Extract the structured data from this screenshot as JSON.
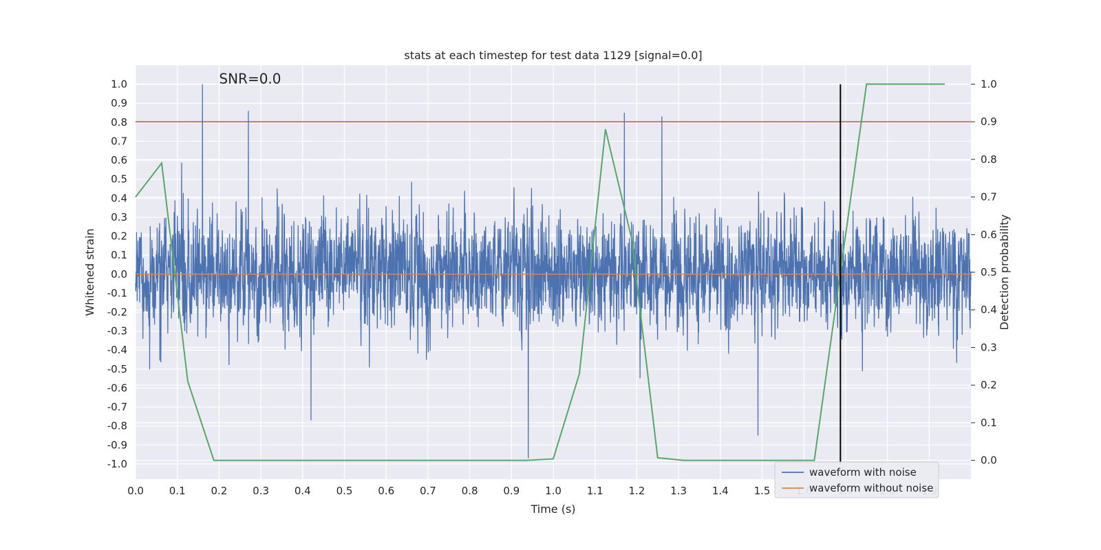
{
  "chart_data": {
    "type": "line",
    "title": "stats at each timestep for test data 1129 [signal=0.0]",
    "annotation": "SNR=0.0",
    "xlabel": "Time (s)",
    "ylabel": "Whitened strain",
    "y2label": "Detection probability",
    "xlim": [
      0.0,
      2.0
    ],
    "ylim": [
      -1.08,
      1.1
    ],
    "y2lim": [
      -0.05,
      1.05
    ],
    "xticks": [
      "0.0",
      "0.1",
      "0.2",
      "0.3",
      "0.4",
      "0.5",
      "0.6",
      "0.7",
      "0.8",
      "0.9",
      "1.0",
      "1.1",
      "1.2",
      "1.3",
      "1.4",
      "1.5",
      "1.6",
      "1.7",
      "1.8",
      "1.9"
    ],
    "yticks": [
      "1.0",
      "0.9",
      "0.8",
      "0.7",
      "0.6",
      "0.5",
      "0.4",
      "0.3",
      "0.2",
      "0.1",
      "0.0",
      "-0.1",
      "-0.2",
      "-0.3",
      "-0.4",
      "-0.5",
      "-0.6",
      "-0.7",
      "-0.8",
      "-0.9",
      "-1.0"
    ],
    "y2ticks": [
      "1.0",
      "0.9",
      "0.8",
      "0.7",
      "0.6",
      "0.5",
      "0.4",
      "0.3",
      "0.2",
      "0.1",
      "0.0"
    ],
    "grid": true,
    "legend_position": "lower-right",
    "colors": {
      "background": "#eaeaf2",
      "grid": "#ffffff",
      "noise": "#4c72b0",
      "clean": "#dd8452",
      "probability": "#55a868",
      "threshold": "#c44e52",
      "marker": "#000000"
    },
    "series": [
      {
        "name": "waveform with noise",
        "axis": "left",
        "style": "noise",
        "sample_count": 4096,
        "x_range": [
          0.0,
          2.0
        ],
        "peaks": [
          {
            "x": 0.16,
            "y": 1.0
          },
          {
            "x": 0.27,
            "y": 0.86
          },
          {
            "x": 0.94,
            "y": -0.97
          },
          {
            "x": 1.17,
            "y": 0.85
          },
          {
            "x": 1.26,
            "y": 0.83
          },
          {
            "x": 0.42,
            "y": -0.77
          },
          {
            "x": 1.49,
            "y": -0.85
          }
        ]
      },
      {
        "name": "waveform without noise",
        "axis": "left",
        "x": [
          0.0,
          2.0
        ],
        "y": [
          0.0,
          0.0
        ]
      },
      {
        "axis": "right",
        "x": [
          0.0,
          0.0625,
          0.125,
          0.1875,
          0.25,
          0.3125,
          0.375,
          0.4375,
          0.5,
          0.5625,
          0.625,
          0.6875,
          0.75,
          0.8125,
          0.875,
          0.9375,
          1.0,
          1.0625,
          1.125,
          1.1875,
          1.25,
          1.3125,
          1.375,
          1.4375,
          1.5,
          1.5625,
          1.625,
          1.6875,
          1.75,
          1.8125,
          1.875,
          1.9375
        ],
        "y": [
          0.7,
          0.79,
          0.21,
          0.0,
          0.0,
          0.0,
          0.0,
          0.0,
          0.0,
          0.0,
          0.0,
          0.0,
          0.0,
          0.0,
          0.0,
          0.0,
          0.004,
          0.23,
          0.88,
          0.59,
          0.007,
          0.0,
          0.0,
          0.0,
          0.0,
          0.0,
          0.0,
          0.5,
          1.0,
          1.0,
          1.0,
          1.0
        ]
      }
    ],
    "threshold_y2": 0.9,
    "marker_x": 1.6875
  }
}
